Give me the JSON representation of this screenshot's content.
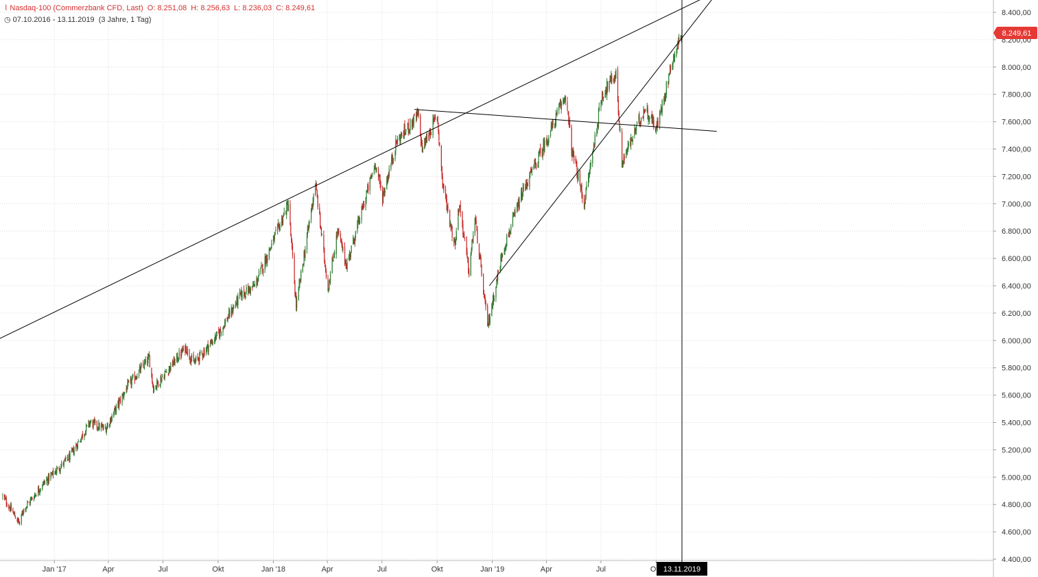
{
  "header": {
    "instrument": "Nasdaq-100 (Commerzbank CFD, Last)",
    "open": "O: 8.251,08",
    "high": "H: 8.256,63",
    "low": "L: 8.236,03",
    "close": "C: 8.249,61",
    "range": "07.10.2016 - 13.11.2019",
    "period": "(3 Jahre, 1 Tag)"
  },
  "colors": {
    "up": "#2e7d32",
    "down": "#c62828",
    "badge": "#e53935",
    "grid": "#d9d9d9",
    "trendline": "#000000"
  },
  "current_price_label": "8.249,61",
  "crosshair_label": "13.11.2019",
  "chart_data": {
    "type": "candlestick",
    "x_axis": {
      "type": "date",
      "range": [
        "2016-10-07",
        "2019-11-13"
      ],
      "tick_labels": [
        "Jan '17",
        "Apr",
        "Jul",
        "Okt",
        "Jan '18",
        "Apr",
        "Jul",
        "Okt",
        "Jan '19",
        "Apr",
        "Jul",
        "Okt"
      ]
    },
    "y_axis": {
      "range": [
        4300,
        8450
      ],
      "tick_labels": [
        "8.400,00",
        "8.200,00",
        "8.000,00",
        "7.800,00",
        "7.600,00",
        "7.400,00",
        "7.200,00",
        "7.000,00",
        "6.800,00",
        "6.600,00",
        "6.400,00",
        "6.200,00",
        "6.000,00",
        "5.800,00",
        "5.600,00",
        "5.400,00",
        "5.200,00",
        "5.000,00",
        "4.800,00",
        "4.600,00",
        "4.400,00"
      ]
    },
    "grid": true,
    "anchors": [
      {
        "date": "2016-10-07",
        "close": 4860
      },
      {
        "date": "2016-11-04",
        "close": 4660
      },
      {
        "date": "2016-11-10",
        "close": 4760
      },
      {
        "date": "2016-12-13",
        "close": 4950
      },
      {
        "date": "2017-01-27",
        "close": 5150
      },
      {
        "date": "2017-03-01",
        "close": 5400
      },
      {
        "date": "2017-03-27",
        "close": 5350
      },
      {
        "date": "2017-05-01",
        "close": 5650
      },
      {
        "date": "2017-06-08",
        "close": 5870
      },
      {
        "date": "2017-06-15",
        "close": 5650
      },
      {
        "date": "2017-08-08",
        "close": 5950
      },
      {
        "date": "2017-08-21",
        "close": 5830
      },
      {
        "date": "2017-10-02",
        "close": 6050
      },
      {
        "date": "2017-11-07",
        "close": 6330
      },
      {
        "date": "2017-12-01",
        "close": 6400
      },
      {
        "date": "2018-01-26",
        "close": 7000
      },
      {
        "date": "2018-02-08",
        "close": 6250
      },
      {
        "date": "2018-03-12",
        "close": 7150
      },
      {
        "date": "2018-04-02",
        "close": 6380
      },
      {
        "date": "2018-04-18",
        "close": 6800
      },
      {
        "date": "2018-05-03",
        "close": 6550
      },
      {
        "date": "2018-06-20",
        "close": 7300
      },
      {
        "date": "2018-07-02",
        "close": 7050
      },
      {
        "date": "2018-07-25",
        "close": 7450
      },
      {
        "date": "2018-08-30",
        "close": 7650
      },
      {
        "date": "2018-09-06",
        "close": 7400
      },
      {
        "date": "2018-10-01",
        "close": 7650
      },
      {
        "date": "2018-10-10",
        "close": 7150
      },
      {
        "date": "2018-10-30",
        "close": 6700
      },
      {
        "date": "2018-11-07",
        "close": 7000
      },
      {
        "date": "2018-11-23",
        "close": 6500
      },
      {
        "date": "2018-12-03",
        "close": 6900
      },
      {
        "date": "2018-12-24",
        "close": 6100
      },
      {
        "date": "2019-01-18",
        "close": 6650
      },
      {
        "date": "2019-02-22",
        "close": 7100
      },
      {
        "date": "2019-04-05",
        "close": 7500
      },
      {
        "date": "2019-05-03",
        "close": 7800
      },
      {
        "date": "2019-05-13",
        "close": 7400
      },
      {
        "date": "2019-06-03",
        "close": 7000
      },
      {
        "date": "2019-07-03",
        "close": 7800
      },
      {
        "date": "2019-07-26",
        "close": 7950
      },
      {
        "date": "2019-08-05",
        "close": 7300
      },
      {
        "date": "2019-09-12",
        "close": 7700
      },
      {
        "date": "2019-10-02",
        "close": 7550
      },
      {
        "date": "2019-10-28",
        "close": 8050
      },
      {
        "date": "2019-11-13",
        "close": 8250
      }
    ],
    "trendlines": [
      {
        "start": {
          "date": "2016-09-30",
          "value": 6010
        },
        "end": {
          "date": "2019-12-17",
          "value": 8500
        }
      },
      {
        "start": {
          "date": "2018-08-24",
          "value": 7690
        },
        "end": {
          "date": "2020-01-10",
          "value": 7530
        }
      },
      {
        "start": {
          "date": "2018-12-27",
          "value": 6400
        },
        "end": {
          "date": "2020-01-03",
          "value": 8500
        }
      }
    ],
    "crosshair_date": "2019-11-13"
  }
}
